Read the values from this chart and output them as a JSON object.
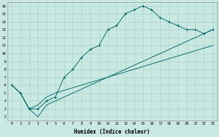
{
  "xlabel": "Humidex (Indice chaleur)",
  "bg_color": "#c8e8e2",
  "grid_color": "#a8ccc6",
  "line_color": "#006868",
  "xlim": [
    -0.5,
    23.5
  ],
  "ylim": [
    1.5,
    16.5
  ],
  "line1": {
    "x": [
      0,
      1,
      2,
      3,
      4,
      5,
      6,
      7,
      8,
      9,
      10,
      11,
      12,
      13,
      14,
      15,
      16,
      17,
      18,
      19,
      20,
      21,
      22,
      23
    ],
    "y": [
      6.0,
      5.0,
      3.0,
      3.0,
      4.0,
      4.5,
      7.0,
      8.0,
      9.5,
      10.5,
      11.0,
      13.0,
      13.5,
      15.0,
      15.5,
      16.0,
      15.5,
      14.5,
      14.0,
      13.5,
      13.0,
      13.0,
      12.5,
      13.0
    ]
  },
  "line2": {
    "x": [
      0,
      1,
      2,
      3,
      4,
      5,
      23
    ],
    "y": [
      6.0,
      5.0,
      3.0,
      2.0,
      3.5,
      4.0,
      13.0
    ]
  },
  "line3": {
    "x": [
      0,
      1,
      2,
      3,
      4,
      5,
      23
    ],
    "y": [
      6.0,
      5.0,
      3.0,
      3.5,
      4.5,
      5.0,
      11.0
    ]
  },
  "xticks": [
    0,
    1,
    2,
    3,
    4,
    5,
    6,
    7,
    8,
    9,
    10,
    11,
    12,
    13,
    14,
    15,
    16,
    17,
    18,
    19,
    20,
    21,
    22,
    23
  ],
  "yticks": [
    2,
    3,
    4,
    5,
    6,
    7,
    8,
    9,
    10,
    11,
    12,
    13,
    14,
    15,
    16
  ]
}
